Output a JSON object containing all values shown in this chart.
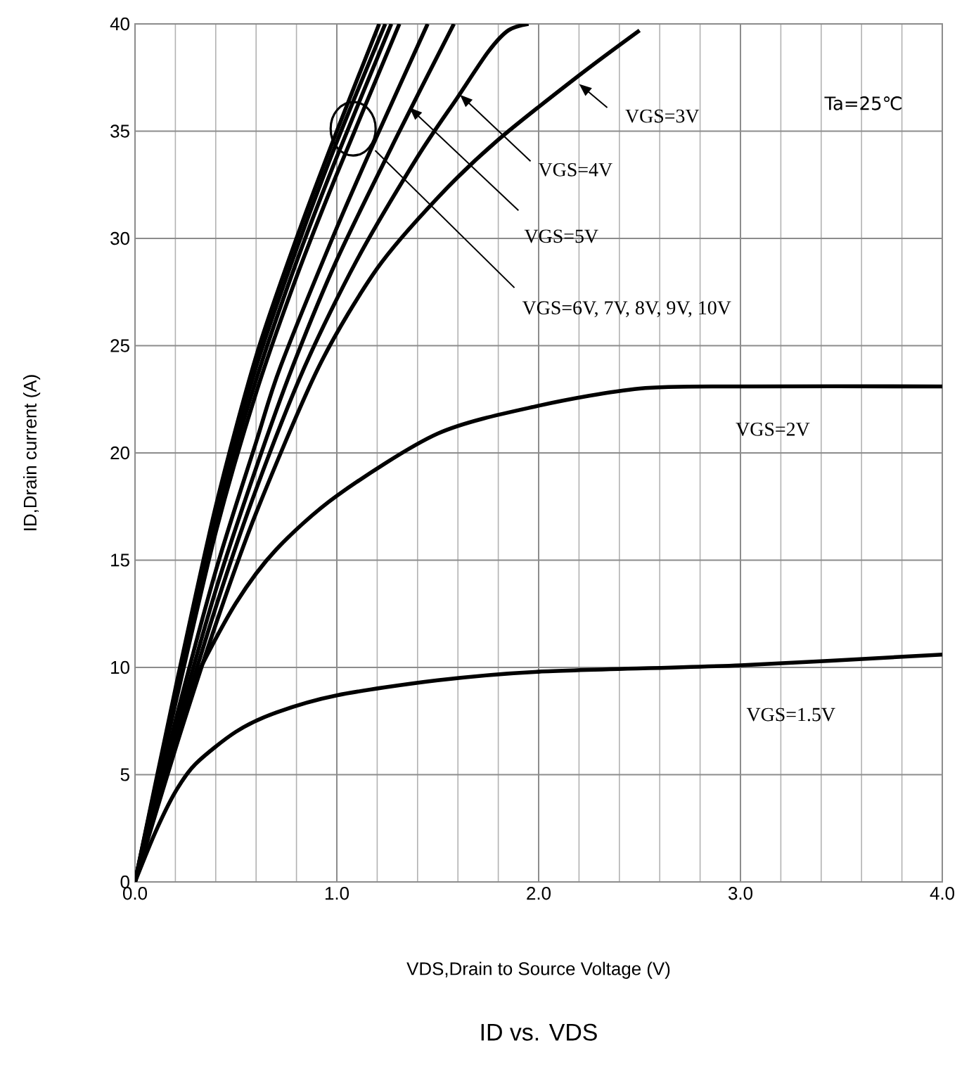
{
  "chart_data": {
    "type": "line",
    "title": "ID vs. VDS",
    "xlabel": "VDS,Drain to Source Voltage (V)",
    "ylabel": "ID,Drain current (A)",
    "xlim": [
      0,
      4
    ],
    "ylim": [
      0,
      40
    ],
    "xticks": [
      {
        "value": 0,
        "label": "0.0"
      },
      {
        "value": 1,
        "label": "1.0"
      },
      {
        "value": 2,
        "label": "2.0"
      },
      {
        "value": 3,
        "label": "3.0"
      },
      {
        "value": 4,
        "label": "4.0"
      }
    ],
    "yticks": [
      0,
      5,
      10,
      15,
      20,
      25,
      30,
      35,
      40
    ],
    "grid": true,
    "series": [
      {
        "name": "VGS=1.5V",
        "color": "#000000",
        "x": [
          0,
          0.1,
          0.2,
          0.3,
          0.5,
          0.7,
          1.0,
          1.5,
          2.0,
          3.0,
          4.0
        ],
        "values": [
          0,
          2.3,
          4.2,
          5.5,
          7,
          7.9,
          8.7,
          9.4,
          9.8,
          10.1,
          10.6
        ]
      },
      {
        "name": "VGS=2V",
        "color": "#000000",
        "x": [
          0,
          0.1,
          0.2,
          0.3,
          0.5,
          0.7,
          1.0,
          1.5,
          2.0,
          2.5,
          3.0,
          4.0
        ],
        "values": [
          0,
          3.5,
          7,
          9.5,
          13,
          15.5,
          18,
          20.9,
          22.2,
          23,
          23.1,
          23.1
        ]
      },
      {
        "name": "VGS=3V",
        "color": "#000000",
        "x": [
          0,
          0.2,
          0.4,
          0.6,
          0.91,
          1.2,
          1.5,
          1.8,
          2.2,
          2.5
        ],
        "values": [
          0,
          6.2,
          12,
          17.2,
          24,
          28.6,
          31.9,
          34.6,
          37.6,
          39.7
        ]
      },
      {
        "name": "VGS=4V",
        "color": "#000000",
        "x": [
          0,
          0.2,
          0.4,
          0.6,
          0.84,
          1.1,
          1.4,
          1.6,
          1.75,
          1.85,
          1.95
        ],
        "values": [
          0,
          6.6,
          12.8,
          18.3,
          24,
          29,
          33.8,
          36.6,
          38.7,
          39.7,
          40
        ]
      },
      {
        "name": "VGS=5V",
        "color": "#000000",
        "x": [
          0,
          0.2,
          0.4,
          0.6,
          0.78,
          1.0,
          1.3,
          1.58
        ],
        "values": [
          0,
          7,
          13.6,
          19.3,
          24,
          29,
          34.8,
          40
        ]
      },
      {
        "color": "#000000",
        "x": [
          0,
          0.2,
          0.4,
          0.6,
          0.72,
          1.0,
          1.2,
          1.45
        ],
        "values": [
          0,
          7.5,
          14.5,
          20.5,
          24,
          30.5,
          34.8,
          40
        ]
      },
      {
        "color": "#000000",
        "x": [
          0,
          0.2,
          0.4,
          0.6,
          0.8,
          1.0,
          1.31
        ],
        "values": [
          0,
          8.3,
          16.3,
          22.8,
          28.2,
          33,
          40
        ]
      },
      {
        "color": "#000000",
        "x": [
          0,
          0.2,
          0.4,
          0.6,
          0.8,
          1.0,
          1.27
        ],
        "values": [
          0,
          8.6,
          16.8,
          23.4,
          28.9,
          33.8,
          40
        ]
      },
      {
        "color": "#000000",
        "x": [
          0,
          0.2,
          0.4,
          0.6,
          0.8,
          1.0,
          1.24
        ],
        "values": [
          0,
          8.8,
          17.2,
          24,
          29.5,
          34.5,
          40
        ]
      },
      {
        "color": "#000000",
        "x": [
          0,
          0.2,
          0.4,
          0.6,
          0.8,
          1.0,
          1.21
        ],
        "values": [
          0,
          9,
          17.5,
          24.5,
          30,
          35,
          40
        ]
      }
    ],
    "annotations": [
      {
        "text": "VGS=6V, 7V, 8V, 9V, 10V",
        "x": 1.19,
        "y": 34.1
      },
      "Ta=25℃"
    ]
  }
}
